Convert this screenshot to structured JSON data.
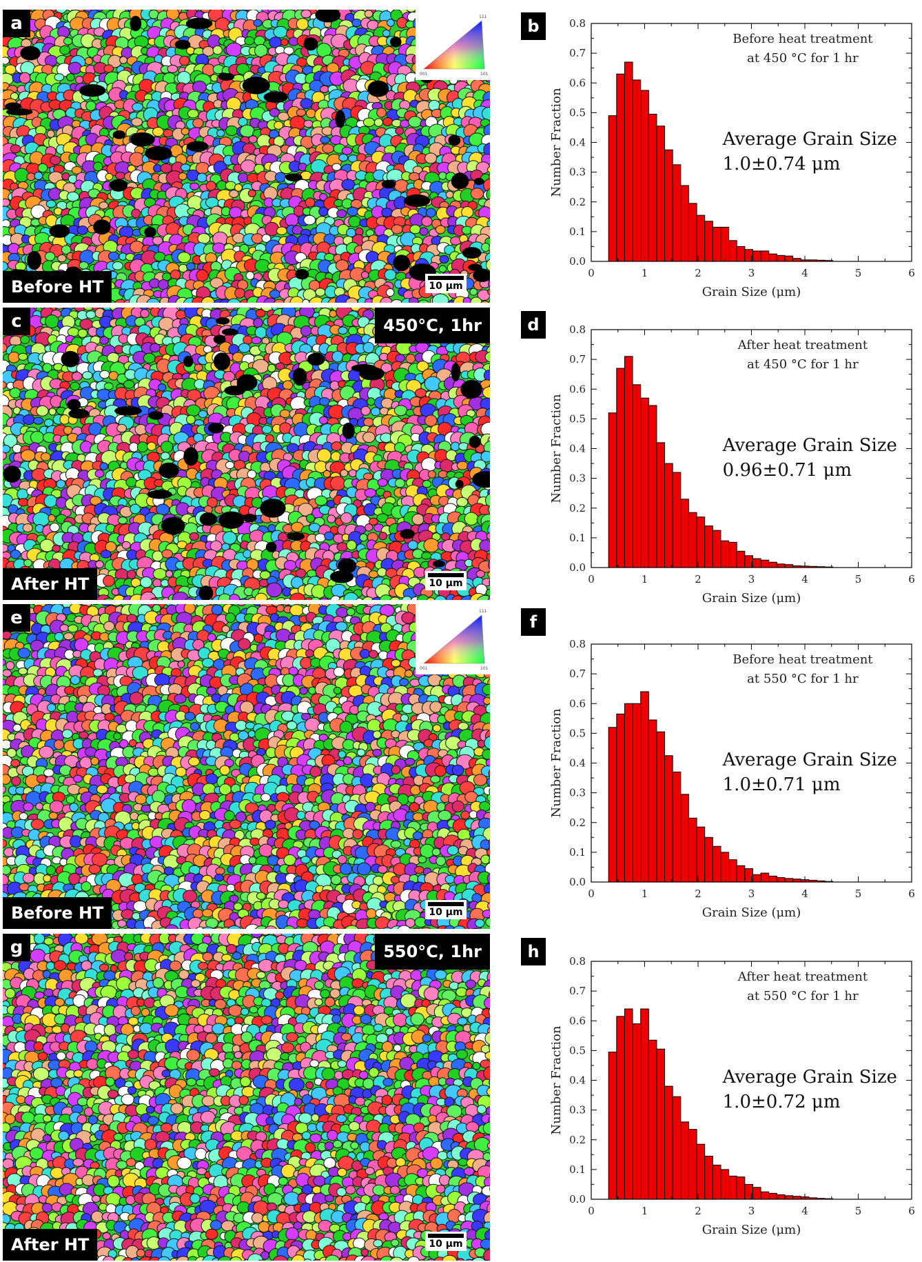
{
  "colors": {
    "bar": "#ee0000",
    "bar_edge": "#000000",
    "label_bg": "#000000",
    "label_text": "#ffffff"
  },
  "maps": [
    {
      "letter": "a",
      "state": "Before HT",
      "condition": "",
      "scale_label": "10 μm",
      "has_triangle": true
    },
    {
      "letter": "c",
      "state": "After HT",
      "condition": "450°C, 1hr",
      "scale_label": "10 μm",
      "has_triangle": false
    },
    {
      "letter": "e",
      "state": "Before HT",
      "condition": "",
      "scale_label": "10 μm",
      "has_triangle": true
    },
    {
      "letter": "g",
      "state": "After HT",
      "condition": "550°C, 1hr",
      "scale_label": "10 μm",
      "has_triangle": false
    }
  ],
  "ipf_triangle_labels": {
    "top": "111",
    "left": "001",
    "right": "101"
  },
  "chart_data": [
    {
      "type": "bar",
      "letter": "b",
      "xlabel": "Grain Size (μm)",
      "ylabel": "Number Fraction",
      "xlim": [
        0,
        6
      ],
      "ylim": [
        0,
        0.8
      ],
      "xticks": [
        "0",
        "1",
        "2",
        "3",
        "4",
        "5",
        "6"
      ],
      "yticks": [
        "0.0",
        "0.1",
        "0.2",
        "0.3",
        "0.4",
        "0.5",
        "0.6",
        "0.7",
        "0.8"
      ],
      "annotation_lines": [
        "Before heat treatment",
        "at 450 °C for 1 hr"
      ],
      "avg_title": "Average Grain Size",
      "avg_value": "1.0±0.74 μm",
      "bin_width": 0.15,
      "x": [
        0.4,
        0.55,
        0.7,
        0.85,
        1.0,
        1.15,
        1.3,
        1.45,
        1.6,
        1.75,
        1.9,
        2.05,
        2.2,
        2.35,
        2.5,
        2.65,
        2.8,
        2.95,
        3.1,
        3.25,
        3.4,
        3.55,
        3.7,
        3.85,
        4.0,
        4.15,
        4.3,
        4.45
      ],
      "values": [
        0.49,
        0.63,
        0.67,
        0.61,
        0.575,
        0.495,
        0.455,
        0.375,
        0.325,
        0.255,
        0.195,
        0.155,
        0.135,
        0.115,
        0.115,
        0.07,
        0.05,
        0.04,
        0.035,
        0.035,
        0.025,
        0.02,
        0.018,
        0.01,
        0.005,
        0.005,
        0.004,
        0.003
      ]
    },
    {
      "type": "bar",
      "letter": "d",
      "xlabel": "Grain Size (μm)",
      "ylabel": "Number Fraction",
      "xlim": [
        0,
        6
      ],
      "ylim": [
        0,
        0.8
      ],
      "xticks": [
        "0",
        "1",
        "2",
        "3",
        "4",
        "5",
        "6"
      ],
      "yticks": [
        "0.0",
        "0.1",
        "0.2",
        "0.3",
        "0.4",
        "0.5",
        "0.6",
        "0.7",
        "0.8"
      ],
      "annotation_lines": [
        "After heat treatment",
        "at 450 °C for 1 hr"
      ],
      "avg_title": "Average Grain Size",
      "avg_value": "0.96±0.71 μm",
      "bin_width": 0.15,
      "x": [
        0.4,
        0.55,
        0.7,
        0.85,
        1.0,
        1.15,
        1.3,
        1.45,
        1.6,
        1.75,
        1.9,
        2.05,
        2.2,
        2.35,
        2.5,
        2.65,
        2.8,
        2.95,
        3.1,
        3.25,
        3.4,
        3.55,
        3.7,
        3.85,
        4.0,
        4.15,
        4.3,
        4.45
      ],
      "values": [
        0.52,
        0.67,
        0.71,
        0.615,
        0.57,
        0.545,
        0.42,
        0.35,
        0.32,
        0.23,
        0.185,
        0.17,
        0.14,
        0.125,
        0.09,
        0.085,
        0.055,
        0.04,
        0.03,
        0.025,
        0.018,
        0.012,
        0.01,
        0.006,
        0.005,
        0.004,
        0.003,
        0.002
      ]
    },
    {
      "type": "bar",
      "letter": "f",
      "xlabel": "Grain Size (μm)",
      "ylabel": "Number Fraction",
      "xlim": [
        0,
        6
      ],
      "ylim": [
        0,
        0.8
      ],
      "xticks": [
        "0",
        "1",
        "2",
        "3",
        "4",
        "5",
        "6"
      ],
      "yticks": [
        "0.0",
        "0.1",
        "0.2",
        "0.3",
        "0.4",
        "0.5",
        "0.6",
        "0.7",
        "0.8"
      ],
      "annotation_lines": [
        "Before heat treatment",
        "at 550 °C for 1 hr"
      ],
      "avg_title": "Average Grain Size",
      "avg_value": "1.0±0.71 μm",
      "bin_width": 0.15,
      "x": [
        0.4,
        0.55,
        0.7,
        0.85,
        1.0,
        1.15,
        1.3,
        1.45,
        1.6,
        1.75,
        1.9,
        2.05,
        2.2,
        2.35,
        2.5,
        2.65,
        2.8,
        2.95,
        3.1,
        3.25,
        3.4,
        3.55,
        3.7,
        3.85,
        4.0,
        4.15,
        4.3,
        4.45
      ],
      "values": [
        0.52,
        0.565,
        0.6,
        0.6,
        0.64,
        0.545,
        0.505,
        0.425,
        0.37,
        0.295,
        0.215,
        0.185,
        0.15,
        0.12,
        0.1,
        0.075,
        0.055,
        0.045,
        0.025,
        0.03,
        0.02,
        0.015,
        0.012,
        0.01,
        0.008,
        0.006,
        0.004,
        0.002
      ]
    },
    {
      "type": "bar",
      "letter": "h",
      "xlabel": "Grain Size (μm)",
      "ylabel": "Number Fraction",
      "xlim": [
        0,
        6
      ],
      "ylim": [
        0,
        0.8
      ],
      "xticks": [
        "0",
        "1",
        "2",
        "3",
        "4",
        "5",
        "6"
      ],
      "yticks": [
        "0.0",
        "0.1",
        "0.2",
        "0.3",
        "0.4",
        "0.5",
        "0.6",
        "0.7",
        "0.8"
      ],
      "annotation_lines": [
        "After heat treatment",
        "at 550 °C for 1 hr"
      ],
      "avg_title": "Average Grain Size",
      "avg_value": "1.0±0.72 μm",
      "bin_width": 0.15,
      "x": [
        0.4,
        0.55,
        0.7,
        0.85,
        1.0,
        1.15,
        1.3,
        1.45,
        1.6,
        1.75,
        1.9,
        2.05,
        2.2,
        2.35,
        2.5,
        2.65,
        2.8,
        2.95,
        3.1,
        3.25,
        3.4,
        3.55,
        3.7,
        3.85,
        4.0,
        4.15,
        4.3,
        4.45
      ],
      "values": [
        0.495,
        0.615,
        0.64,
        0.59,
        0.64,
        0.535,
        0.505,
        0.38,
        0.345,
        0.26,
        0.235,
        0.185,
        0.145,
        0.115,
        0.1,
        0.078,
        0.075,
        0.05,
        0.04,
        0.025,
        0.02,
        0.015,
        0.012,
        0.01,
        0.008,
        0.005,
        0.003,
        0.002
      ]
    }
  ]
}
